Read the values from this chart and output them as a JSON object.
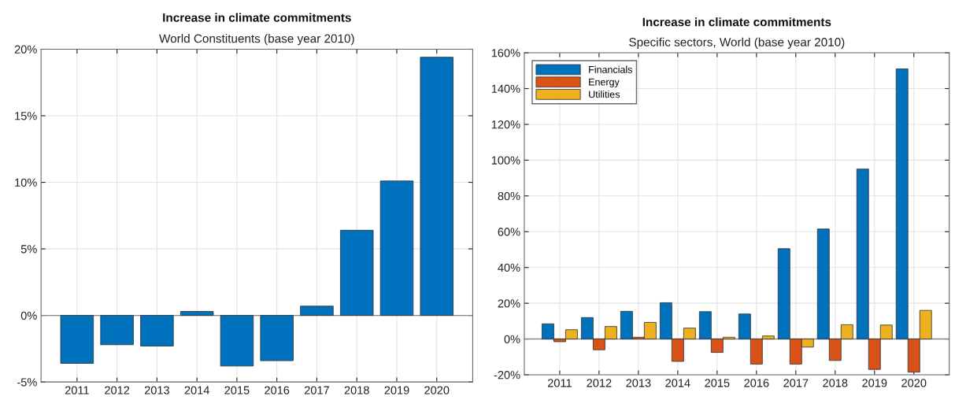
{
  "chart_data": [
    {
      "type": "bar",
      "title": "Increase in climate commitments",
      "subtitle": "World Constituents (base year 2010)",
      "categories": [
        "2011",
        "2012",
        "2013",
        "2014",
        "2015",
        "2016",
        "2017",
        "2018",
        "2019",
        "2020"
      ],
      "series": [
        {
          "color": "#0072bd",
          "values": [
            -3.6,
            -2.2,
            -2.3,
            0.3,
            -3.8,
            -3.4,
            0.7,
            6.4,
            10.1,
            19.4
          ]
        }
      ],
      "ylim": [
        -5,
        20
      ],
      "yticks": [
        {
          "value": -5,
          "label": "-5%"
        },
        {
          "value": 0,
          "label": "0%"
        },
        {
          "value": 5,
          "label": "5%"
        },
        {
          "value": 10,
          "label": "10%"
        },
        {
          "value": 15,
          "label": "15%"
        },
        {
          "value": 20,
          "label": "20%"
        }
      ],
      "grid": true
    },
    {
      "type": "bar",
      "title": "Increase in climate commitments",
      "subtitle": "Specific sectors, World (base year 2010)",
      "categories": [
        "2011",
        "2012",
        "2013",
        "2014",
        "2015",
        "2016",
        "2017",
        "2018",
        "2019",
        "2020"
      ],
      "series": [
        {
          "name": "Financials",
          "color": "#0072bd",
          "values": [
            8.5,
            12,
            15.5,
            20.3,
            15.3,
            14,
            50.5,
            61.5,
            95,
            151
          ]
        },
        {
          "name": "Energy",
          "color": "#d95319",
          "values": [
            -1.5,
            -6,
            1,
            -12.5,
            -7.5,
            -14,
            -14,
            -12,
            -17,
            -18.5
          ]
        },
        {
          "name": "Utilities",
          "color": "#edb120",
          "values": [
            5.2,
            7,
            9.3,
            6.1,
            1,
            1.7,
            -4.5,
            8,
            7.8,
            16
          ]
        }
      ],
      "ylim": [
        -20,
        160
      ],
      "yticks": [
        {
          "value": -20,
          "label": "-20%"
        },
        {
          "value": 0,
          "label": "0%"
        },
        {
          "value": 20,
          "label": "20%"
        },
        {
          "value": 40,
          "label": "40%"
        },
        {
          "value": 60,
          "label": "60%"
        },
        {
          "value": 80,
          "label": "80%"
        },
        {
          "value": 100,
          "label": "100%"
        },
        {
          "value": 120,
          "label": "120%"
        },
        {
          "value": 140,
          "label": "140%"
        },
        {
          "value": 160,
          "label": "160%"
        }
      ],
      "grid": true,
      "legend": "top left"
    }
  ]
}
